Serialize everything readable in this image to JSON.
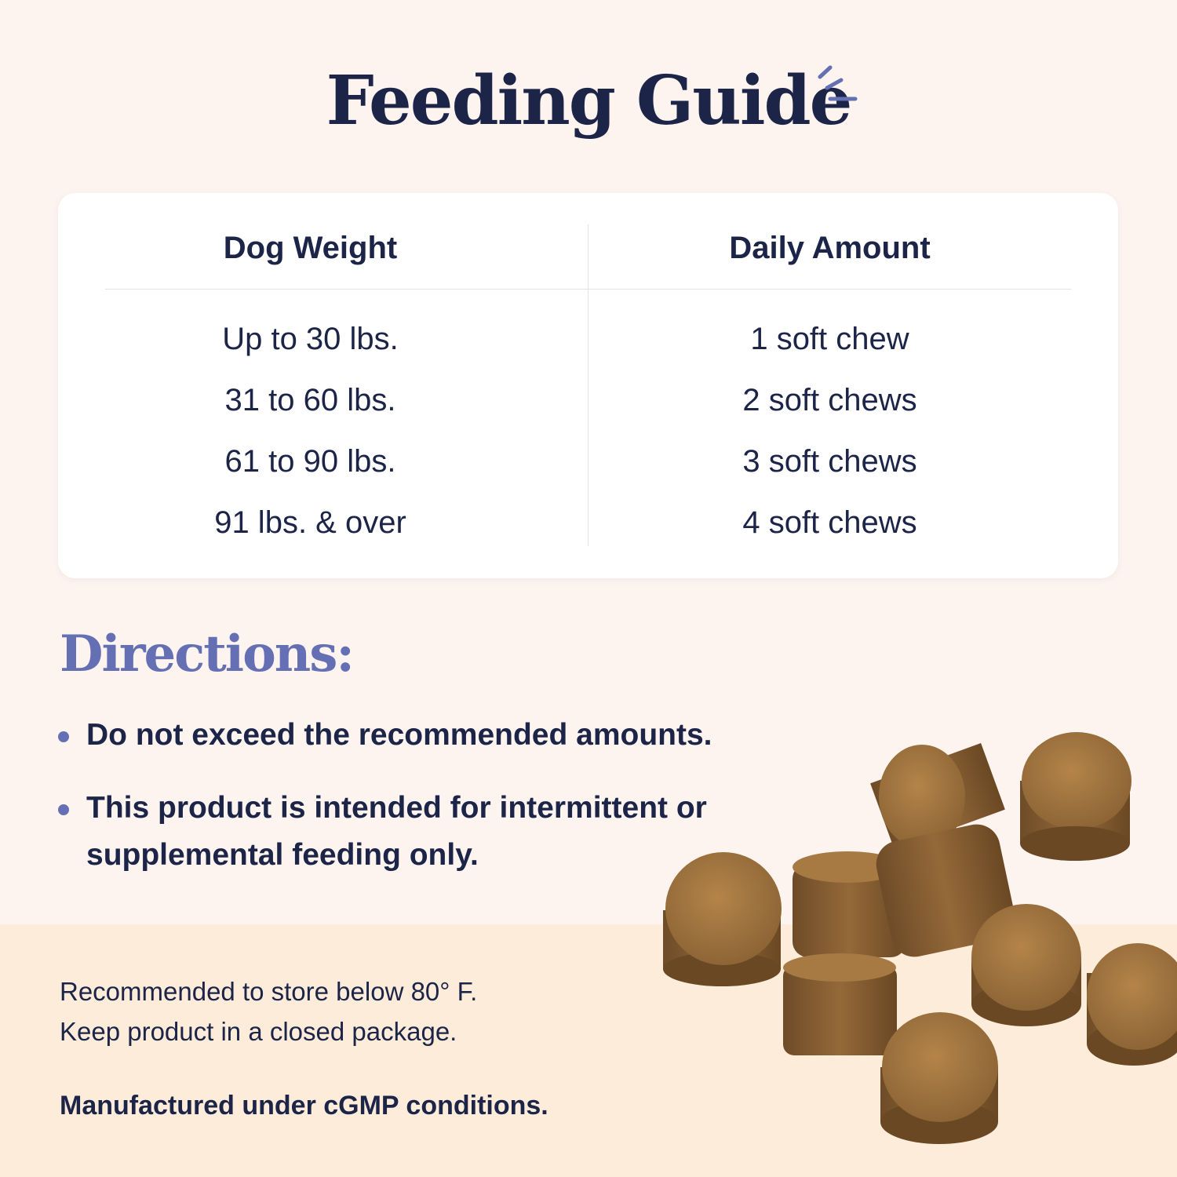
{
  "title": "Feeding Guide",
  "table": {
    "headers": [
      "Dog Weight",
      "Daily Amount"
    ],
    "rows": [
      {
        "weight": "Up to 30 lbs.",
        "amount": "1 soft chew"
      },
      {
        "weight": "31 to 60 lbs.",
        "amount": "2 soft chews"
      },
      {
        "weight": "61 to 90 lbs.",
        "amount": "3 soft chews"
      },
      {
        "weight": "91 lbs. & over",
        "amount": "4 soft chews"
      }
    ]
  },
  "directions": {
    "heading": "Directions:",
    "items": [
      "Do not exceed the recommended amounts.",
      "This product is intended for intermittent or supplemental feeding only."
    ]
  },
  "storage": {
    "line1": "Recommended to store below 80° F.",
    "line2": "Keep product in a closed package."
  },
  "manufacturing": "Manufactured under cGMP conditions.",
  "colors": {
    "navy": "#1c2548",
    "accent": "#6470b3",
    "background": "#fdf4f0",
    "band": "#fdecd9",
    "chew": "#8a6233"
  }
}
